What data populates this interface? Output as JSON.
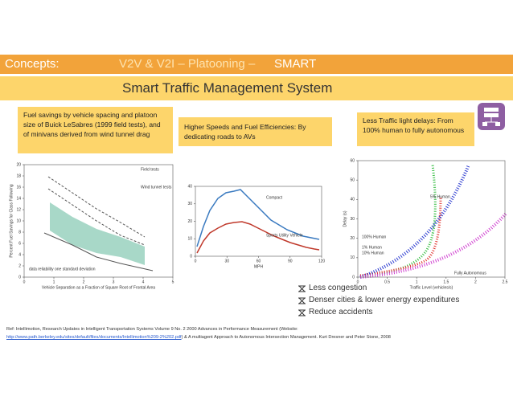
{
  "header": {
    "label": "Concepts:",
    "topics": "V2V & V2I – Platooning –",
    "highlight": "SMART"
  },
  "banner": "Smart Traffic Management System",
  "boxes": [
    "Fuel savings by vehicle spacing and platoon size of Buick LeSabres (1999 field tests), and of minivans derived from wind tunnel drag",
    "Higher Speeds and Fuel Efficiencies: By dedicating roads to AVs",
    "Less Traffic light delays: From 100% human to fully autonomous"
  ],
  "figures": [
    {
      "xticks": [
        0,
        1,
        2,
        3,
        4,
        5
      ],
      "yticks": [
        0,
        2,
        4,
        6,
        8,
        10,
        12,
        14,
        16,
        18,
        20
      ],
      "xlabel": "Vehicle Separation as a Fraction of Square Root of Frontal Area",
      "ylabel": "Percent Fuel Savings for Class Following",
      "legend": [
        "Field tests",
        "Wind tunnel tests"
      ],
      "note": "data reliability one standard deviation"
    },
    {
      "xticks": [
        0,
        30,
        60,
        90,
        120
      ],
      "yticks": [
        0,
        10,
        20,
        30,
        40
      ],
      "xlabel": "MPH",
      "labels": [
        "Compact",
        "Sports Utility Vehicle"
      ]
    },
    {
      "xticks": [
        0,
        0.5,
        1,
        1.5,
        2,
        2.5
      ],
      "yticks": [
        0,
        10,
        20,
        30,
        40,
        50,
        60
      ],
      "xlabel": "Traffic Level (vehicles/s)",
      "ylabel": "Delay (s)",
      "labels": [
        "100% Human",
        "5% Human",
        "10% Human",
        "1% Human",
        "Fully Autonomous"
      ]
    }
  ],
  "bullets": [
    "Less congestion",
    "Denser cities & lower energy expenditures",
    "Reduce accidents"
  ],
  "reference": {
    "text": "Ref: Intellimotion, Research Updates in Intelligent Transportation Systems Volume 9 No. 2 2000 Advances in Performance Measurement (Website:",
    "link": "http://www.path.berkeley.edu/sites/default/files/documents/Intellimotion%209-2%202.pdf",
    "rest": ") & A multiagent Approach to Autonomous Intersection Management. Kurt Dresner and Peter Stone, 2008"
  }
}
